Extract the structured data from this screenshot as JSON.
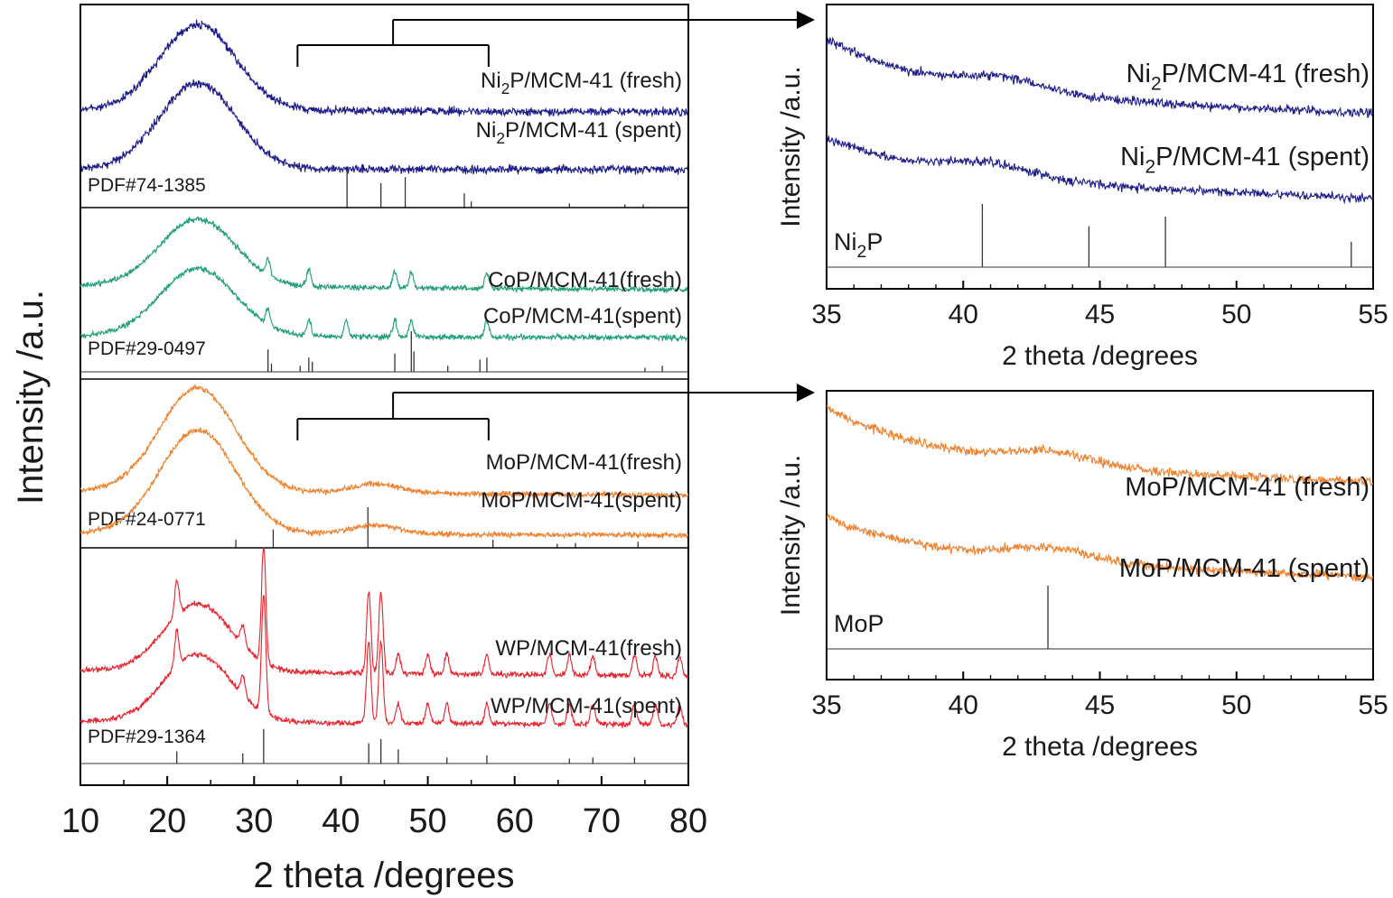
{
  "figure": {
    "colors": {
      "ni2p": "#1c1c8a",
      "cop": "#1f9e7a",
      "mop": "#f07f2a",
      "wp": "#e8202a",
      "axis": "#000000",
      "ref": "#333333"
    }
  },
  "chart_data": [
    {
      "type": "line",
      "panel": "main",
      "xlabel": "2 theta /degrees",
      "ylabel": "Intensity /a.u.",
      "xlim": [
        10,
        80
      ],
      "xticks": [
        "10",
        "20",
        "30",
        "40",
        "50",
        "60",
        "70",
        "80"
      ],
      "grid": false,
      "groups": [
        {
          "id": "ni2p",
          "reference": "PDF#74-1385",
          "reference_peaks": [
            40.7,
            44.6,
            47.4,
            54.2,
            55.0,
            66.3,
            72.7,
            74.8
          ],
          "reference_heights": [
            1.0,
            0.6,
            0.75,
            0.35,
            0.15,
            0.1,
            0.08,
            0.08
          ],
          "series": [
            {
              "name": "Ni2P/MCM-41 (fresh)",
              "label_main": "Ni",
              "label_sub": "2",
              "label_rest": "P/MCM-41 (fresh)",
              "peak_x": 23.5,
              "background_end": 0.12,
              "sharp_peaks": []
            },
            {
              "name": "Ni2P/MCM-41 (spent)",
              "label_main": "Ni",
              "label_sub": "2",
              "label_rest": "P/MCM-41 (spent)",
              "peak_x": 23.5,
              "background_end": 0.05,
              "sharp_peaks": []
            }
          ]
        },
        {
          "id": "cop",
          "reference": "PDF#29-0497",
          "reference_peaks": [
            31.6,
            32.0,
            35.3,
            36.3,
            36.7,
            46.2,
            48.1,
            48.4,
            52.3,
            56.0,
            56.8,
            75.0,
            77.0
          ],
          "reference_heights": [
            0.55,
            0.2,
            0.15,
            0.35,
            0.25,
            0.45,
            1.0,
            0.5,
            0.15,
            0.3,
            0.35,
            0.1,
            0.15
          ],
          "series": [
            {
              "name": "CoP/MCM-41(fresh)",
              "label_main": "CoP/MCM-41(fresh)",
              "label_sub": "",
              "label_rest": "",
              "peak_x": 23.5,
              "background_end": 0.22,
              "sharp_peaks": [
                31.6,
                36.3,
                46.2,
                48.1,
                56.8
              ]
            },
            {
              "name": "CoP/MCM-41(spent)",
              "label_main": "CoP/MCM-41(spent)",
              "label_sub": "",
              "label_rest": "",
              "peak_x": 23.5,
              "background_end": 0.08,
              "sharp_peaks": [
                31.6,
                36.3,
                40.6,
                46.2,
                48.1,
                56.8
              ]
            }
          ]
        },
        {
          "id": "mop",
          "reference": "PDF#24-0771",
          "reference_peaks": [
            27.9,
            32.2,
            43.1,
            57.5,
            64.9,
            67.0,
            74.2
          ],
          "reference_heights": [
            0.2,
            0.45,
            1.0,
            0.2,
            0.1,
            0.12,
            0.15
          ],
          "series": [
            {
              "name": "MoP/MCM-41(fresh)",
              "label_main": "MoP/MCM-41(fresh)",
              "label_sub": "",
              "label_rest": "",
              "peak_x": 23.5,
              "background_end": 0.25,
              "sharp_peaks": []
            },
            {
              "name": "MoP/MCM-41(spent)",
              "label_main": "MoP/MCM-41(spent)",
              "label_sub": "",
              "label_rest": "",
              "peak_x": 23.5,
              "background_end": 0.1,
              "sharp_peaks": []
            }
          ]
        },
        {
          "id": "wp",
          "reference": "PDF#29-1364",
          "reference_peaks": [
            21.1,
            28.7,
            31.1,
            43.2,
            44.6,
            46.6,
            52.2,
            56.8,
            66.3,
            69.0,
            73.8
          ],
          "reference_heights": [
            0.3,
            0.25,
            0.85,
            0.5,
            0.6,
            0.35,
            0.15,
            0.2,
            0.12,
            0.15,
            0.15
          ],
          "series": [
            {
              "name": "WP/MCM-41(fresh)",
              "label_main": "WP/MCM-41(fresh)",
              "label_sub": "",
              "label_rest": "",
              "peak_x": 23.5,
              "background_end": 0.3,
              "sharp_peaks": [
                21.1,
                28.7,
                31.1,
                43.2,
                44.6,
                46.6,
                50.0,
                52.2,
                56.8,
                64.0,
                66.3,
                69.0,
                73.8,
                76.2,
                79.0
              ]
            },
            {
              "name": "WP/MCM-41(spent)",
              "label_main": "WP/MCM-41(spent)",
              "label_sub": "",
              "label_rest": "",
              "peak_x": 23.5,
              "background_end": 0.18,
              "sharp_peaks": [
                21.1,
                28.7,
                31.1,
                43.2,
                44.6,
                46.6,
                50.0,
                52.2,
                56.8,
                64.0,
                66.3,
                69.0,
                73.8,
                76.2,
                79.0
              ]
            }
          ]
        }
      ]
    },
    {
      "type": "line",
      "panel": "inset-ni2p",
      "xlabel": "2 theta /degrees",
      "ylabel": "Intensity /a.u.",
      "xlim": [
        35,
        55
      ],
      "xticks": [
        "35",
        "40",
        "45",
        "50",
        "55"
      ],
      "grid": false,
      "reference_main": "Ni",
      "reference_sub": "2",
      "reference_rest": "P",
      "reference_peaks": [
        40.7,
        44.6,
        47.4,
        54.2
      ],
      "reference_heights": [
        1.0,
        0.65,
        0.8,
        0.4
      ],
      "series": [
        {
          "name": "Ni2P/MCM-41 (fresh)",
          "label_main": "Ni",
          "label_sub": "2",
          "label_rest": "P/MCM-41 (fresh)",
          "start": 1.0,
          "end": 0.22,
          "hump_x": 41.5
        },
        {
          "name": "Ni2P/MCM-41 (spent)",
          "label_main": "Ni",
          "label_sub": "2",
          "label_rest": "P/MCM-41 (spent)",
          "start": 0.75,
          "end": 0.0,
          "hump_x": 41.0
        }
      ]
    },
    {
      "type": "line",
      "panel": "inset-mop",
      "xlabel": "2 theta /degrees",
      "ylabel": "Intensity /a.u.",
      "xlim": [
        35,
        55
      ],
      "xticks": [
        "35",
        "40",
        "45",
        "50",
        "55"
      ],
      "grid": false,
      "reference_main": "MoP",
      "reference_sub": "",
      "reference_rest": "",
      "reference_peaks": [
        43.1
      ],
      "reference_heights": [
        1.0
      ],
      "series": [
        {
          "name": "MoP/MCM-41 (fresh)",
          "label_main": "MoP/MCM-41 (fresh)",
          "label_sub": "",
          "label_rest": "",
          "start": 1.0,
          "end": 0.3,
          "hump_x": 43.2
        },
        {
          "name": "MoP/MCM-41 (spent)",
          "label_main": "MoP/MCM-41 (spent)",
          "label_sub": "",
          "label_rest": "",
          "start": 0.72,
          "end": 0.02,
          "hump_x": 43.2
        }
      ]
    }
  ]
}
